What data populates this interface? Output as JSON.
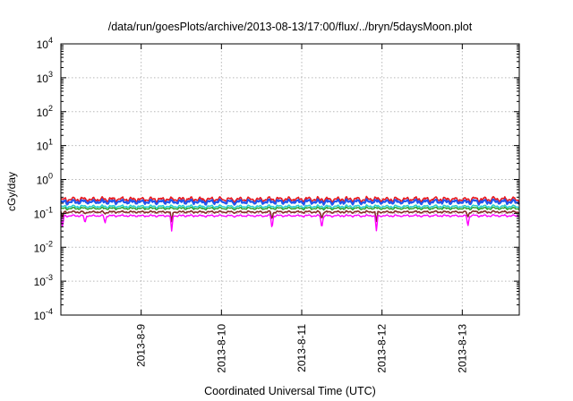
{
  "chart_data": {
    "type": "line",
    "title": "/data/run/goesPlots/archive/2013-08-13/17:00/flux/../bryn/5daysMoon.plot",
    "xlabel": "Coordinated Universal Time (UTC)",
    "ylabel": "cGy/day",
    "yscale": "log",
    "ylim": [
      0.0001,
      10000
    ],
    "ytick_exponents": [
      "4",
      "3",
      "2",
      "1",
      "0",
      "-1",
      "-2",
      "-3",
      "-4"
    ],
    "ytick_values": [
      10000,
      1000,
      100,
      10,
      1,
      0.1,
      0.01,
      0.001,
      0.0001
    ],
    "ytick_base": "10",
    "xlim": [
      "2013-08-08 00:00",
      "2013-08-13 17:00"
    ],
    "xtick_labels": [
      "2013-8-9",
      "2013-8-10",
      "2013-8-11",
      "2013-8-12",
      "2013-8-13"
    ],
    "xtick_days": [
      1,
      2,
      3,
      4,
      5
    ],
    "x_span_days": 5.71,
    "grid": true,
    "series": [
      {
        "color": "#e8191e",
        "level": 0.26,
        "spread": 0.12,
        "lw": 1.6
      },
      {
        "color": "#2255ee",
        "level": 0.22,
        "spread": 0.11,
        "lw": 2.2
      },
      {
        "color": "#22cfcf",
        "level": 0.16,
        "spread": 0.07,
        "lw": 1.5
      },
      {
        "color": "#2ca02c",
        "level": 0.14,
        "spread": 0.06,
        "lw": 1.4
      },
      {
        "color": "#8a2b2b",
        "level": 0.11,
        "spread": 0.05,
        "lw": 1.6
      },
      {
        "color": "#ff00ff",
        "level": 0.085,
        "spread": 0.05,
        "lw": 1.4
      }
    ],
    "dips": [
      {
        "day": 0.02,
        "value": 0.04
      },
      {
        "day": 0.3,
        "value": 0.05
      },
      {
        "day": 0.55,
        "value": 0.05
      },
      {
        "day": 1.38,
        "value": 0.03
      },
      {
        "day": 2.63,
        "value": 0.035
      },
      {
        "day": 3.25,
        "value": 0.035
      },
      {
        "day": 3.93,
        "value": 0.03
      },
      {
        "day": 5.07,
        "value": 0.04
      }
    ]
  }
}
